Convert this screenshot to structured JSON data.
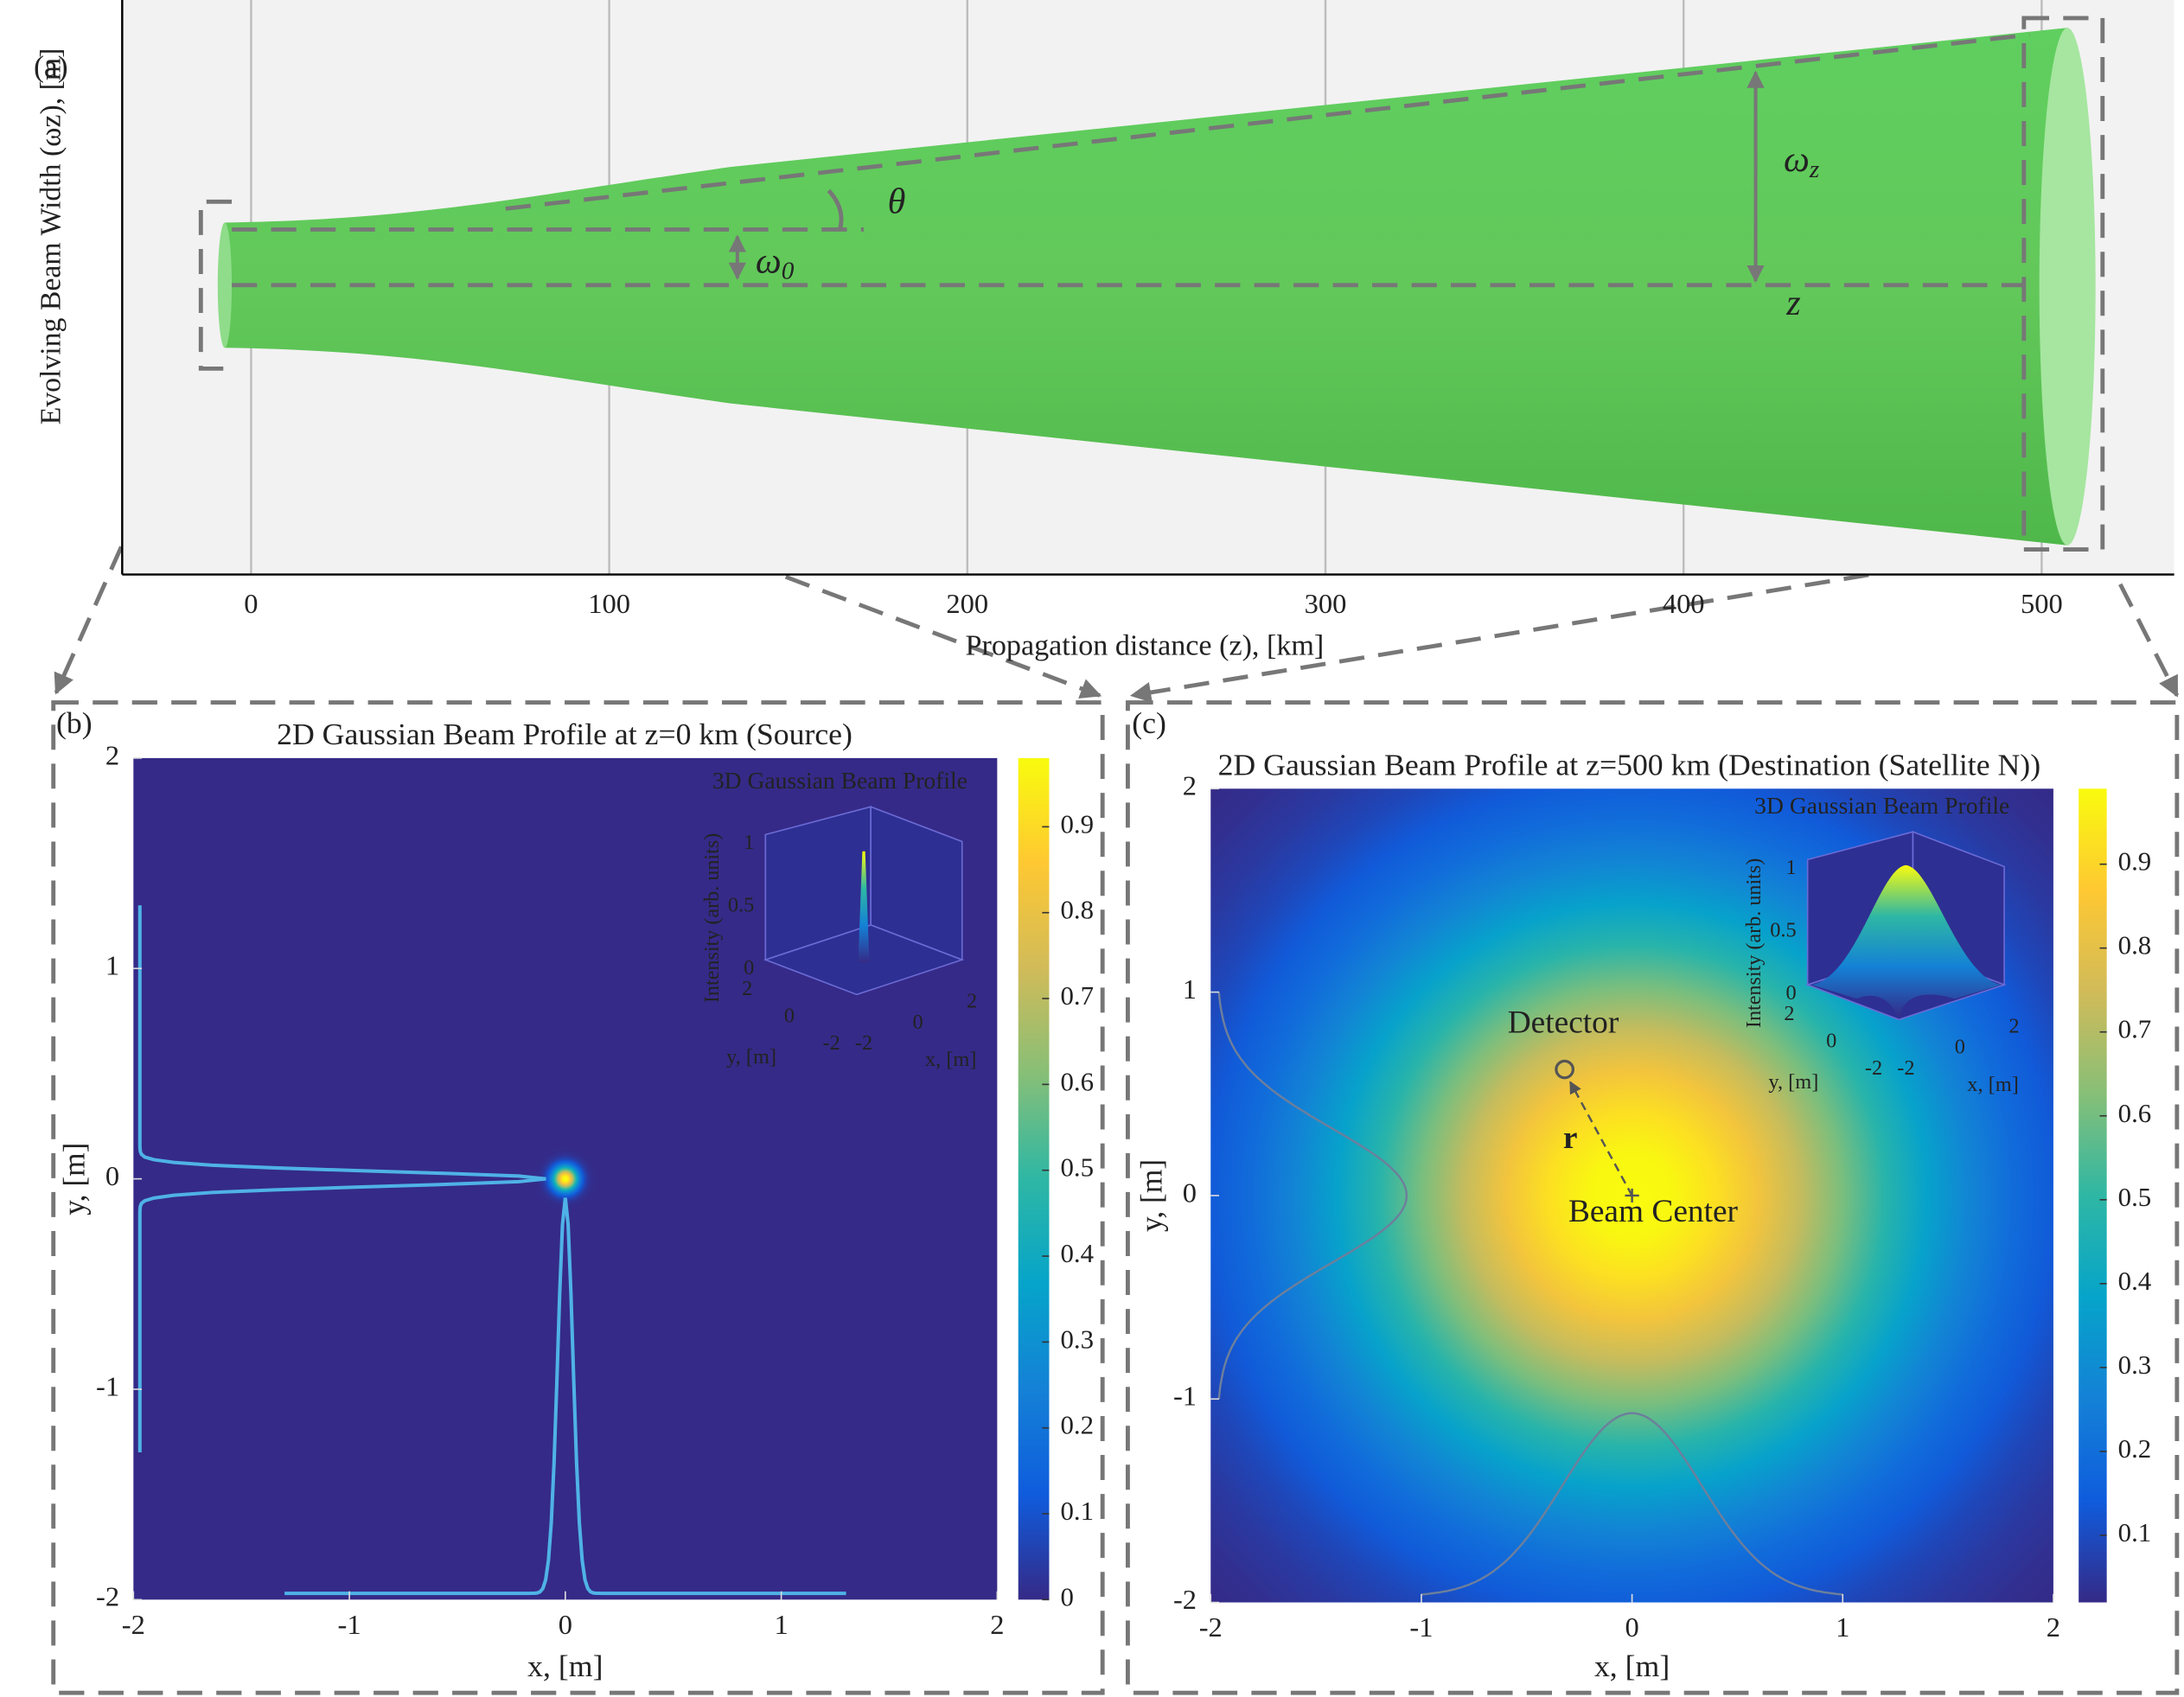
{
  "chart_data": [
    {
      "type": "beam",
      "panel": "(a)",
      "xlabel": "Propagation distance (z), [km]",
      "ylabel": "Evolving Beam Width (ωz), [m]",
      "annotations": [
        {
          "symbol": "θ"
        },
        {
          "symbol": "ω",
          "sub": "z"
        },
        {
          "symbol": "ω",
          "sub": "0"
        },
        {
          "symbol": "z"
        }
      ],
      "xlim": [
        -36,
        537
      ],
      "xticks": [
        0,
        100,
        200,
        300,
        400,
        500
      ],
      "grid": true
    },
    {
      "type": "heatmap",
      "panel": "(b)",
      "title": "2D Gaussian Beam Profile at z=0 km (Source)",
      "xlabel": "x, [m]",
      "ylabel": "y, [m]",
      "xlim": [
        -2,
        2
      ],
      "ylim": [
        -2,
        2
      ],
      "xticks": [
        -2,
        -1,
        0,
        1,
        2
      ],
      "yticks": [
        -2,
        -1,
        0,
        1,
        2
      ],
      "clim": [
        0,
        0.98
      ],
      "cticks": [
        0,
        0.1,
        0.2,
        0.3,
        0.4,
        0.5,
        0.6,
        0.7,
        0.8,
        0.9
      ],
      "inset": {
        "title": "3D Gaussian Beam Profile",
        "zlabel": "Intensity (arb. units)",
        "zticks": [
          0,
          0.5,
          1
        ],
        "yticks": [
          -2,
          0,
          2
        ],
        "xticks": [
          -2,
          0,
          2
        ],
        "ylabel": "y, [m]",
        "xlabel": "x, [m]"
      }
    },
    {
      "type": "heatmap",
      "panel": "(c)",
      "title": "2D Gaussian Beam Profile at z=500 km (Destination (Satellite N))",
      "xlabel": "x, [m]",
      "ylabel": "y, [m]",
      "xlim": [
        -2,
        2
      ],
      "ylim": [
        -2,
        2
      ],
      "xticks": [
        -2,
        -1,
        0,
        1,
        2
      ],
      "yticks": [
        -2,
        -1,
        0,
        1,
        2
      ],
      "clim": [
        0.02,
        0.99
      ],
      "cticks": [
        0.1,
        0.2,
        0.3,
        0.4,
        0.5,
        0.6,
        0.7,
        0.8,
        0.9
      ],
      "annotations": [
        "Detector",
        "r",
        "Beam Center"
      ],
      "inset": {
        "title": "3D Gaussian Beam Profile",
        "zlabel": "Intensity (arb. units)",
        "zticks": [
          0,
          0.5,
          1
        ],
        "yticks": [
          -2,
          0,
          2
        ],
        "xticks": [
          -2,
          0,
          2
        ],
        "ylabel": "y, [m]",
        "xlabel": "x, [m]"
      }
    }
  ]
}
